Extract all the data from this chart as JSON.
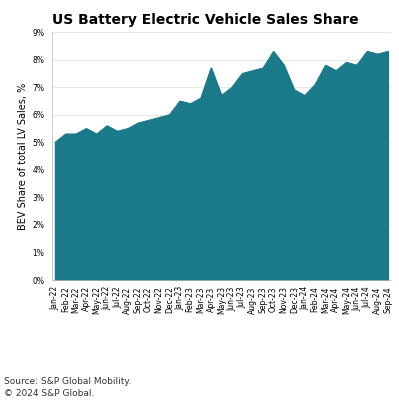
{
  "title": "US Battery Electric Vehicle Sales Share",
  "ylabel": "BEV Share of total LV Sales, %",
  "fill_color": "#1a7a8a",
  "background_color": "#ffffff",
  "ylim": [
    0,
    9
  ],
  "yticks": [
    0,
    1,
    2,
    3,
    4,
    5,
    6,
    7,
    8,
    9
  ],
  "source_text": "Source: S&P Global Mobility.\n© 2024 S&P Global.",
  "labels": [
    "Jan-22",
    "Feb-22",
    "Mar-22",
    "Apr-22",
    "May-22",
    "Jun-22",
    "Jul-22",
    "Aug-22",
    "Sep-22",
    "Oct-22",
    "Nov-22",
    "Dec-22",
    "Jan-23",
    "Feb-23",
    "Mar-23",
    "Apr-23",
    "May-23",
    "Jun-23",
    "Jul-23",
    "Aug-23",
    "Sep-23",
    "Oct-23",
    "Nov-23",
    "Dec-23",
    "Jan-24",
    "Feb-24",
    "Mar-24",
    "Apr-24",
    "May-24",
    "Jun-24",
    "Jul-24",
    "Aug-24",
    "Sep-24"
  ],
  "values": [
    5.0,
    5.3,
    5.3,
    5.5,
    5.3,
    5.6,
    5.4,
    5.5,
    5.7,
    5.8,
    5.9,
    6.0,
    6.5,
    6.4,
    6.6,
    7.7,
    6.7,
    7.0,
    7.5,
    7.6,
    7.7,
    8.3,
    7.8,
    6.9,
    6.7,
    7.1,
    7.8,
    7.6,
    7.9,
    7.8,
    8.3,
    8.2,
    8.3
  ],
  "title_fontsize": 10,
  "tick_fontsize": 5.5,
  "ylabel_fontsize": 7,
  "source_fontsize": 6.5
}
